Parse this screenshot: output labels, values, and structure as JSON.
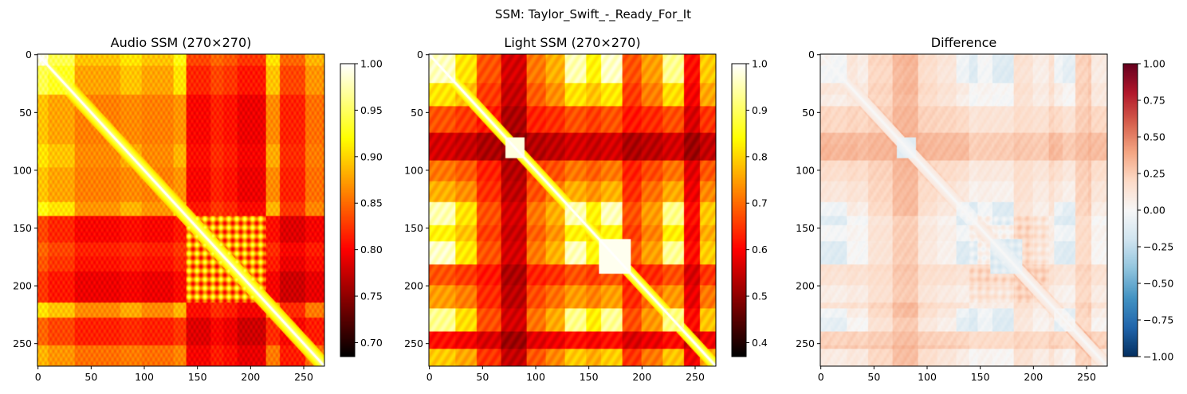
{
  "figure": {
    "suptitle": "SSM: Taylor_Swift_-_Ready_For_It"
  },
  "chart_data": [
    {
      "type": "heatmap",
      "title": "Audio SSM (270×270)",
      "shape": [
        270,
        270
      ],
      "colormap": "hot",
      "xticks": [
        0,
        50,
        100,
        150,
        200,
        250
      ],
      "yticks": [
        0,
        50,
        100,
        150,
        200,
        250
      ],
      "colorbar": {
        "range": [
          0.685,
          1.0
        ],
        "ticks": [
          "0.70",
          "0.75",
          "0.80",
          "0.85",
          "0.90",
          "0.95",
          "1.00"
        ],
        "tick_values": [
          0.7,
          0.75,
          0.8,
          0.85,
          0.9,
          0.95,
          1.0
        ]
      }
    },
    {
      "type": "heatmap",
      "title": "Light SSM (270×270)",
      "shape": [
        270,
        270
      ],
      "colormap": "hot",
      "xticks": [
        0,
        50,
        100,
        150,
        200,
        250
      ],
      "yticks": [
        0,
        50,
        100,
        150,
        200,
        250
      ],
      "colorbar": {
        "range": [
          0.37,
          1.0
        ],
        "ticks": [
          "0.4",
          "0.5",
          "0.6",
          "0.7",
          "0.8",
          "0.9",
          "1.0"
        ],
        "tick_values": [
          0.4,
          0.5,
          0.6,
          0.7,
          0.8,
          0.9,
          1.0
        ]
      }
    },
    {
      "type": "heatmap",
      "title": "Difference",
      "shape": [
        270,
        270
      ],
      "colormap": "RdBu_r",
      "xticks": [
        0,
        50,
        100,
        150,
        200,
        250
      ],
      "yticks": [
        0,
        50,
        100,
        150,
        200,
        250
      ],
      "colorbar": {
        "range": [
          -1.0,
          1.0
        ],
        "ticks": [
          "−1.00",
          "−0.75",
          "−0.50",
          "−0.25",
          "0.00",
          "0.25",
          "0.50",
          "0.75",
          "1.00"
        ],
        "tick_values": [
          -1.0,
          -0.75,
          -0.5,
          -0.25,
          0.0,
          0.25,
          0.5,
          0.75,
          1.0
        ]
      }
    }
  ]
}
